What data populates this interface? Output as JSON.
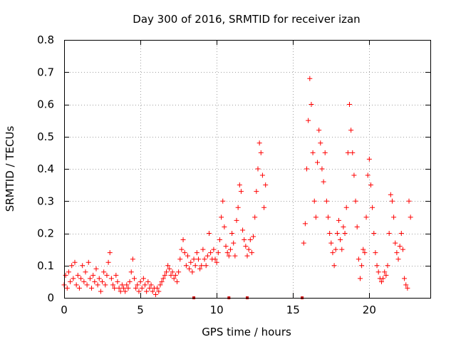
{
  "chart_data": {
    "type": "scatter",
    "title": "Day 300 of 2016, SRMTID for receiver izan",
    "xlabel": "GPS time / hours",
    "ylabel": "SRMTID / TECUs",
    "xlim": [
      0,
      24
    ],
    "ylim": [
      0,
      0.8
    ],
    "xticks": [
      0,
      5,
      10,
      15,
      20
    ],
    "yticks": [
      0,
      0.1,
      0.2,
      0.3,
      0.4,
      0.5,
      0.6,
      0.7,
      0.8
    ],
    "xtick_labels": [
      "0",
      "5",
      "10",
      "15",
      "20"
    ],
    "ytick_labels": [
      "0",
      "0.1",
      "0.2",
      "0.3",
      "0.4",
      "0.5",
      "0.6",
      "0.7",
      "0.8"
    ],
    "grid": true,
    "marker": "+",
    "point_color": "#ff0000",
    "baseline_markers": {
      "color": "#cc0000",
      "x": [
        8.5,
        10.8,
        12.0,
        15.6
      ],
      "y": 0
    },
    "series": [
      {
        "name": "SRMTID",
        "points": [
          [
            0.0,
            0.04
          ],
          [
            0.1,
            0.07
          ],
          [
            0.2,
            0.03
          ],
          [
            0.3,
            0.08
          ],
          [
            0.4,
            0.05
          ],
          [
            0.5,
            0.1
          ],
          [
            0.6,
            0.06
          ],
          [
            0.7,
            0.11
          ],
          [
            0.8,
            0.04
          ],
          [
            0.9,
            0.07
          ],
          [
            1.0,
            0.03
          ],
          [
            1.1,
            0.06
          ],
          [
            1.2,
            0.1
          ],
          [
            1.3,
            0.05
          ],
          [
            1.4,
            0.08
          ],
          [
            1.5,
            0.04
          ],
          [
            1.6,
            0.11
          ],
          [
            1.7,
            0.06
          ],
          [
            1.8,
            0.03
          ],
          [
            1.9,
            0.07
          ],
          [
            2.0,
            0.05
          ],
          [
            2.1,
            0.09
          ],
          [
            2.2,
            0.04
          ],
          [
            2.3,
            0.06
          ],
          [
            2.4,
            0.02
          ],
          [
            2.5,
            0.05
          ],
          [
            2.6,
            0.08
          ],
          [
            2.7,
            0.04
          ],
          [
            2.8,
            0.07
          ],
          [
            2.9,
            0.11
          ],
          [
            3.0,
            0.14
          ],
          [
            3.1,
            0.06
          ],
          [
            3.2,
            0.04
          ],
          [
            3.3,
            0.03
          ],
          [
            3.4,
            0.07
          ],
          [
            3.5,
            0.05
          ],
          [
            3.6,
            0.03
          ],
          [
            3.7,
            0.02
          ],
          [
            3.8,
            0.04
          ],
          [
            3.9,
            0.03
          ],
          [
            4.0,
            0.02
          ],
          [
            4.1,
            0.04
          ],
          [
            4.2,
            0.03
          ],
          [
            4.3,
            0.05
          ],
          [
            4.4,
            0.08
          ],
          [
            4.5,
            0.12
          ],
          [
            4.6,
            0.06
          ],
          [
            4.7,
            0.03
          ],
          [
            4.8,
            0.04
          ],
          [
            4.9,
            0.02
          ],
          [
            5.0,
            0.05
          ],
          [
            5.1,
            0.03
          ],
          [
            5.2,
            0.06
          ],
          [
            5.3,
            0.04
          ],
          [
            5.4,
            0.02
          ],
          [
            5.5,
            0.05
          ],
          [
            5.6,
            0.03
          ],
          [
            5.7,
            0.04
          ],
          [
            5.8,
            0.02
          ],
          [
            5.9,
            0.03
          ],
          [
            6.0,
            0.01
          ],
          [
            6.1,
            0.03
          ],
          [
            6.2,
            0.02
          ],
          [
            6.3,
            0.04
          ],
          [
            6.4,
            0.05
          ],
          [
            6.5,
            0.06
          ],
          [
            6.6,
            0.07
          ],
          [
            6.7,
            0.08
          ],
          [
            6.8,
            0.1
          ],
          [
            6.9,
            0.09
          ],
          [
            7.0,
            0.07
          ],
          [
            7.1,
            0.08
          ],
          [
            7.2,
            0.06
          ],
          [
            7.3,
            0.07
          ],
          [
            7.4,
            0.05
          ],
          [
            7.5,
            0.08
          ],
          [
            7.6,
            0.12
          ],
          [
            7.7,
            0.15
          ],
          [
            7.8,
            0.18
          ],
          [
            7.9,
            0.14
          ],
          [
            8.0,
            0.1
          ],
          [
            8.1,
            0.13
          ],
          [
            8.2,
            0.09
          ],
          [
            8.3,
            0.11
          ],
          [
            8.4,
            0.08
          ],
          [
            8.5,
            0.12
          ],
          [
            8.6,
            0.1
          ],
          [
            8.7,
            0.14
          ],
          [
            8.8,
            0.12
          ],
          [
            8.9,
            0.09
          ],
          [
            9.0,
            0.1
          ],
          [
            9.1,
            0.15
          ],
          [
            9.2,
            0.12
          ],
          [
            9.3,
            0.1
          ],
          [
            9.4,
            0.13
          ],
          [
            9.5,
            0.2
          ],
          [
            9.6,
            0.14
          ],
          [
            9.7,
            0.12
          ],
          [
            9.8,
            0.15
          ],
          [
            9.9,
            0.12
          ],
          [
            10.0,
            0.11
          ],
          [
            10.1,
            0.14
          ],
          [
            10.2,
            0.18
          ],
          [
            10.3,
            0.25
          ],
          [
            10.4,
            0.3
          ],
          [
            10.5,
            0.22
          ],
          [
            10.6,
            0.16
          ],
          [
            10.7,
            0.14
          ],
          [
            10.8,
            0.13
          ],
          [
            10.9,
            0.15
          ],
          [
            11.0,
            0.2
          ],
          [
            11.1,
            0.17
          ],
          [
            11.2,
            0.13
          ],
          [
            11.3,
            0.24
          ],
          [
            11.4,
            0.28
          ],
          [
            11.5,
            0.35
          ],
          [
            11.6,
            0.33
          ],
          [
            11.7,
            0.21
          ],
          [
            11.8,
            0.18
          ],
          [
            11.9,
            0.16
          ],
          [
            12.0,
            0.13
          ],
          [
            12.1,
            0.15
          ],
          [
            12.2,
            0.18
          ],
          [
            12.3,
            0.14
          ],
          [
            12.4,
            0.19
          ],
          [
            12.5,
            0.25
          ],
          [
            12.6,
            0.33
          ],
          [
            12.7,
            0.4
          ],
          [
            12.8,
            0.48
          ],
          [
            12.9,
            0.45
          ],
          [
            13.0,
            0.38
          ],
          [
            13.1,
            0.28
          ],
          [
            13.2,
            0.35
          ],
          [
            15.7,
            0.17
          ],
          [
            15.8,
            0.23
          ],
          [
            15.9,
            0.4
          ],
          [
            16.0,
            0.55
          ],
          [
            16.1,
            0.68
          ],
          [
            16.2,
            0.6
          ],
          [
            16.3,
            0.45
          ],
          [
            16.4,
            0.3
          ],
          [
            16.5,
            0.25
          ],
          [
            16.6,
            0.42
          ],
          [
            16.7,
            0.52
          ],
          [
            16.8,
            0.48
          ],
          [
            16.9,
            0.4
          ],
          [
            17.0,
            0.36
          ],
          [
            17.1,
            0.45
          ],
          [
            17.2,
            0.3
          ],
          [
            17.3,
            0.25
          ],
          [
            17.4,
            0.2
          ],
          [
            17.5,
            0.17
          ],
          [
            17.6,
            0.14
          ],
          [
            17.7,
            0.1
          ],
          [
            17.8,
            0.15
          ],
          [
            17.9,
            0.2
          ],
          [
            18.0,
            0.24
          ],
          [
            18.1,
            0.18
          ],
          [
            18.2,
            0.15
          ],
          [
            18.3,
            0.22
          ],
          [
            18.4,
            0.2
          ],
          [
            18.5,
            0.28
          ],
          [
            18.6,
            0.45
          ],
          [
            18.7,
            0.6
          ],
          [
            18.8,
            0.52
          ],
          [
            18.9,
            0.45
          ],
          [
            19.0,
            0.38
          ],
          [
            19.1,
            0.3
          ],
          [
            19.2,
            0.22
          ],
          [
            19.3,
            0.12
          ],
          [
            19.4,
            0.06
          ],
          [
            19.5,
            0.1
          ],
          [
            19.6,
            0.15
          ],
          [
            19.7,
            0.14
          ],
          [
            19.8,
            0.25
          ],
          [
            19.9,
            0.38
          ],
          [
            20.0,
            0.43
          ],
          [
            20.1,
            0.35
          ],
          [
            20.2,
            0.28
          ],
          [
            20.3,
            0.2
          ],
          [
            20.4,
            0.14
          ],
          [
            20.5,
            0.1
          ],
          [
            20.6,
            0.08
          ],
          [
            20.7,
            0.06
          ],
          [
            20.8,
            0.05
          ],
          [
            20.9,
            0.06
          ],
          [
            21.0,
            0.08
          ],
          [
            21.1,
            0.07
          ],
          [
            21.2,
            0.1
          ],
          [
            21.3,
            0.2
          ],
          [
            21.4,
            0.32
          ],
          [
            21.5,
            0.3
          ],
          [
            21.6,
            0.25
          ],
          [
            21.7,
            0.17
          ],
          [
            21.8,
            0.14
          ],
          [
            21.9,
            0.12
          ],
          [
            22.0,
            0.16
          ],
          [
            22.1,
            0.2
          ],
          [
            22.2,
            0.15
          ],
          [
            22.3,
            0.06
          ],
          [
            22.4,
            0.04
          ],
          [
            22.5,
            0.03
          ],
          [
            22.6,
            0.3
          ],
          [
            22.7,
            0.25
          ]
        ]
      }
    ]
  }
}
